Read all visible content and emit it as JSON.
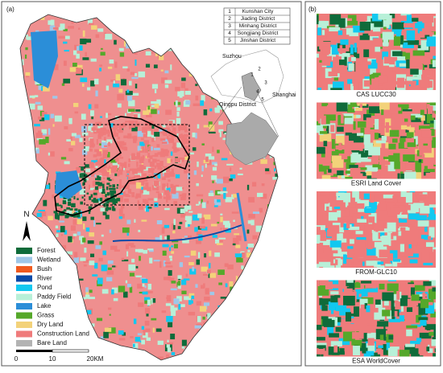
{
  "panel_a": {
    "label": "(a)",
    "legend": [
      {
        "label": "Forest",
        "color": "#0f6b3a"
      },
      {
        "label": "Wetland",
        "color": "#9fc7e8"
      },
      {
        "label": "Bush",
        "color": "#f05a1e"
      },
      {
        "label": "River",
        "color": "#0a4aa8"
      },
      {
        "label": "Pond",
        "color": "#12c8f0"
      },
      {
        "label": "Paddy Field",
        "color": "#b8f0d8"
      },
      {
        "label": "Lake",
        "color": "#2b8ed8"
      },
      {
        "label": "Grass",
        "color": "#55a82a"
      },
      {
        "label": "Dry Land",
        "color": "#f3d27a"
      },
      {
        "label": "Construction Land",
        "color": "#ef7b7b"
      },
      {
        "label": "Bare Land",
        "color": "#b3b3b3"
      }
    ],
    "north": "N",
    "scale": {
      "start": "0",
      "middle": "10",
      "end": "20KM"
    },
    "inset": {
      "table": [
        [
          "1",
          "Kunshan City"
        ],
        [
          "2",
          "Jiading District"
        ],
        [
          "3",
          "Minhang District"
        ],
        [
          "4",
          "Songjiang District"
        ],
        [
          "5",
          "Jinshan District"
        ]
      ],
      "labels": {
        "suzhou": "Suzhou",
        "shanghai": "Shanghai",
        "qingpu": "Qingpu District"
      },
      "numbers": [
        "1",
        "2",
        "3",
        "4",
        "5"
      ]
    }
  },
  "panel_b": {
    "label": "(b)",
    "captions": [
      "CAS LUCC30",
      "ESRI Land Cover",
      "FROM-GLC10",
      "ESA WorldCover"
    ]
  }
}
